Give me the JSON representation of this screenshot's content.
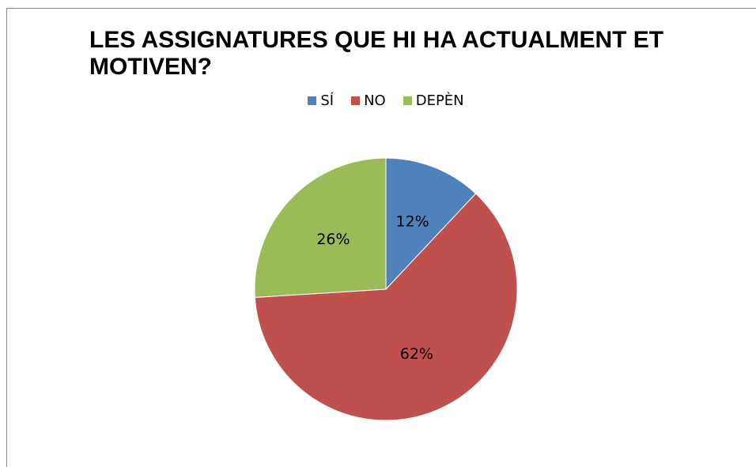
{
  "chart_data": {
    "type": "pie",
    "title": "LES ASSIGNATURES QUE HI HA ACTUALMENT ET MOTIVEN?",
    "categories": [
      "SÍ",
      "NO",
      "DEPÈN"
    ],
    "values": [
      12,
      62,
      26
    ],
    "value_labels": [
      "12%",
      "62%",
      "26%"
    ],
    "colors": [
      "#4f81bd",
      "#c0504d",
      "#9bbb59"
    ],
    "legend": "top"
  }
}
